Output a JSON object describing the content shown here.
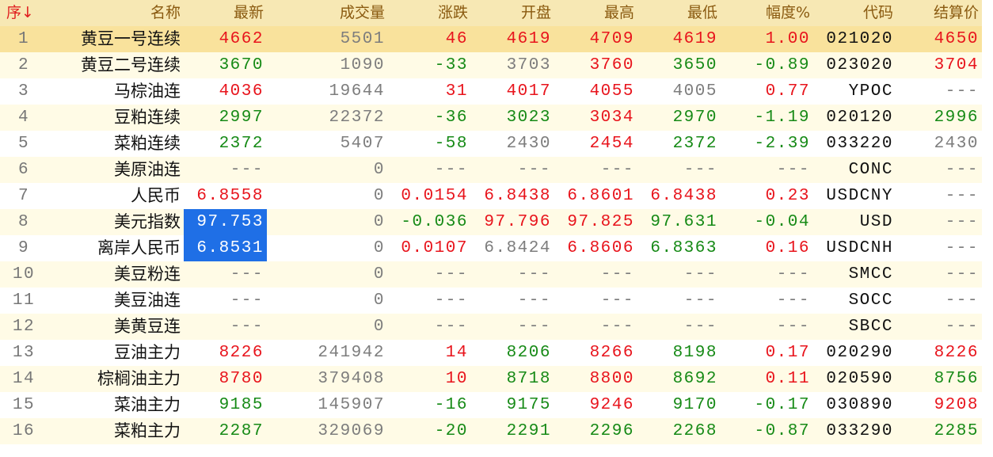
{
  "header": {
    "sort_arrow_icon": "arrow-down-icon",
    "columns": [
      "序↓",
      "名称",
      "最新",
      "成交量",
      "涨跌",
      "开盘",
      "最高",
      "最低",
      "幅度%",
      "代码",
      "结算价"
    ]
  },
  "colors": {
    "up": "#e8141c",
    "down": "#168a16",
    "flat": "#7d7d7d",
    "selected_row": "#f9e29c",
    "highlight": "#1f6fe6"
  },
  "selected_row": 1,
  "highlighted_cells": [
    {
      "row": 8,
      "column": "最新"
    },
    {
      "row": 9,
      "column": "最新"
    }
  ],
  "rows": [
    {
      "seq": "1",
      "name": "黄豆一号连续",
      "cells": [
        "4662",
        "5501",
        "46",
        "4619",
        "4709",
        "4619",
        "1.00",
        "021020",
        "4650"
      ],
      "colors": [
        "r",
        "n",
        "r",
        "r",
        "r",
        "r",
        "r",
        "k",
        "r"
      ]
    },
    {
      "seq": "2",
      "name": "黄豆二号连续",
      "cells": [
        "3670",
        "1090",
        "-33",
        "3703",
        "3760",
        "3650",
        "-0.89",
        "023020",
        "3704"
      ],
      "colors": [
        "g",
        "n",
        "g",
        "n",
        "r",
        "g",
        "g",
        "k",
        "r"
      ]
    },
    {
      "seq": "3",
      "name": "马棕油连",
      "cells": [
        "4036",
        "19644",
        "31",
        "4017",
        "4055",
        "4005",
        "0.77",
        "YPOC",
        "---"
      ],
      "colors": [
        "r",
        "n",
        "r",
        "r",
        "r",
        "n",
        "r",
        "k",
        "n"
      ]
    },
    {
      "seq": "4",
      "name": "豆粕连续",
      "cells": [
        "2997",
        "22372",
        "-36",
        "3023",
        "3034",
        "2970",
        "-1.19",
        "020120",
        "2996"
      ],
      "colors": [
        "g",
        "n",
        "g",
        "g",
        "r",
        "g",
        "g",
        "k",
        "g"
      ]
    },
    {
      "seq": "5",
      "name": "菜粕连续",
      "cells": [
        "2372",
        "5407",
        "-58",
        "2430",
        "2454",
        "2372",
        "-2.39",
        "033220",
        "2430"
      ],
      "colors": [
        "g",
        "n",
        "g",
        "n",
        "r",
        "g",
        "g",
        "k",
        "n"
      ]
    },
    {
      "seq": "6",
      "name": "美原油连",
      "cells": [
        "---",
        "0",
        "---",
        "---",
        "---",
        "---",
        "---",
        "CONC",
        "---"
      ],
      "colors": [
        "n",
        "n",
        "n",
        "n",
        "n",
        "n",
        "n",
        "k",
        "n"
      ]
    },
    {
      "seq": "7",
      "name": "人民币",
      "cells": [
        "6.8558",
        "0",
        "0.0154",
        "6.8438",
        "6.8601",
        "6.8438",
        "0.23",
        "USDCNY",
        "---"
      ],
      "colors": [
        "r",
        "n",
        "r",
        "r",
        "r",
        "r",
        "r",
        "k",
        "n"
      ]
    },
    {
      "seq": "8",
      "name": "美元指数",
      "cells": [
        "97.753",
        "0",
        "-0.036",
        "97.796",
        "97.825",
        "97.631",
        "-0.04",
        "USD",
        "---"
      ],
      "colors": [
        "g",
        "n",
        "g",
        "r",
        "r",
        "g",
        "g",
        "k",
        "n"
      ]
    },
    {
      "seq": "9",
      "name": "离岸人民币",
      "cells": [
        "6.8531",
        "0",
        "0.0107",
        "6.8424",
        "6.8606",
        "6.8363",
        "0.16",
        "USDCNH",
        "---"
      ],
      "colors": [
        "r",
        "n",
        "r",
        "n",
        "r",
        "g",
        "r",
        "k",
        "n"
      ]
    },
    {
      "seq": "10",
      "name": "美豆粉连",
      "cells": [
        "---",
        "0",
        "---",
        "---",
        "---",
        "---",
        "---",
        "SMCC",
        "---"
      ],
      "colors": [
        "n",
        "n",
        "n",
        "n",
        "n",
        "n",
        "n",
        "k",
        "n"
      ]
    },
    {
      "seq": "11",
      "name": "美豆油连",
      "cells": [
        "---",
        "0",
        "---",
        "---",
        "---",
        "---",
        "---",
        "SOCC",
        "---"
      ],
      "colors": [
        "n",
        "n",
        "n",
        "n",
        "n",
        "n",
        "n",
        "k",
        "n"
      ]
    },
    {
      "seq": "12",
      "name": "美黄豆连",
      "cells": [
        "---",
        "0",
        "---",
        "---",
        "---",
        "---",
        "---",
        "SBCC",
        "---"
      ],
      "colors": [
        "n",
        "n",
        "n",
        "n",
        "n",
        "n",
        "n",
        "k",
        "n"
      ]
    },
    {
      "seq": "13",
      "name": "豆油主力",
      "cells": [
        "8226",
        "241942",
        "14",
        "8206",
        "8266",
        "8198",
        "0.17",
        "020290",
        "8226"
      ],
      "colors": [
        "r",
        "n",
        "r",
        "g",
        "r",
        "g",
        "r",
        "k",
        "r"
      ]
    },
    {
      "seq": "14",
      "name": "棕榈油主力",
      "cells": [
        "8780",
        "379408",
        "10",
        "8718",
        "8800",
        "8692",
        "0.11",
        "020590",
        "8756"
      ],
      "colors": [
        "r",
        "n",
        "r",
        "g",
        "r",
        "g",
        "r",
        "k",
        "g"
      ]
    },
    {
      "seq": "15",
      "name": "菜油主力",
      "cells": [
        "9185",
        "145907",
        "-16",
        "9175",
        "9246",
        "9170",
        "-0.17",
        "030890",
        "9208"
      ],
      "colors": [
        "g",
        "n",
        "g",
        "g",
        "r",
        "g",
        "g",
        "k",
        "r"
      ]
    },
    {
      "seq": "16",
      "name": "菜粕主力",
      "cells": [
        "2287",
        "329069",
        "-20",
        "2291",
        "2296",
        "2268",
        "-0.87",
        "033290",
        "2285"
      ],
      "colors": [
        "g",
        "n",
        "g",
        "g",
        "g",
        "g",
        "g",
        "k",
        "g"
      ]
    }
  ]
}
